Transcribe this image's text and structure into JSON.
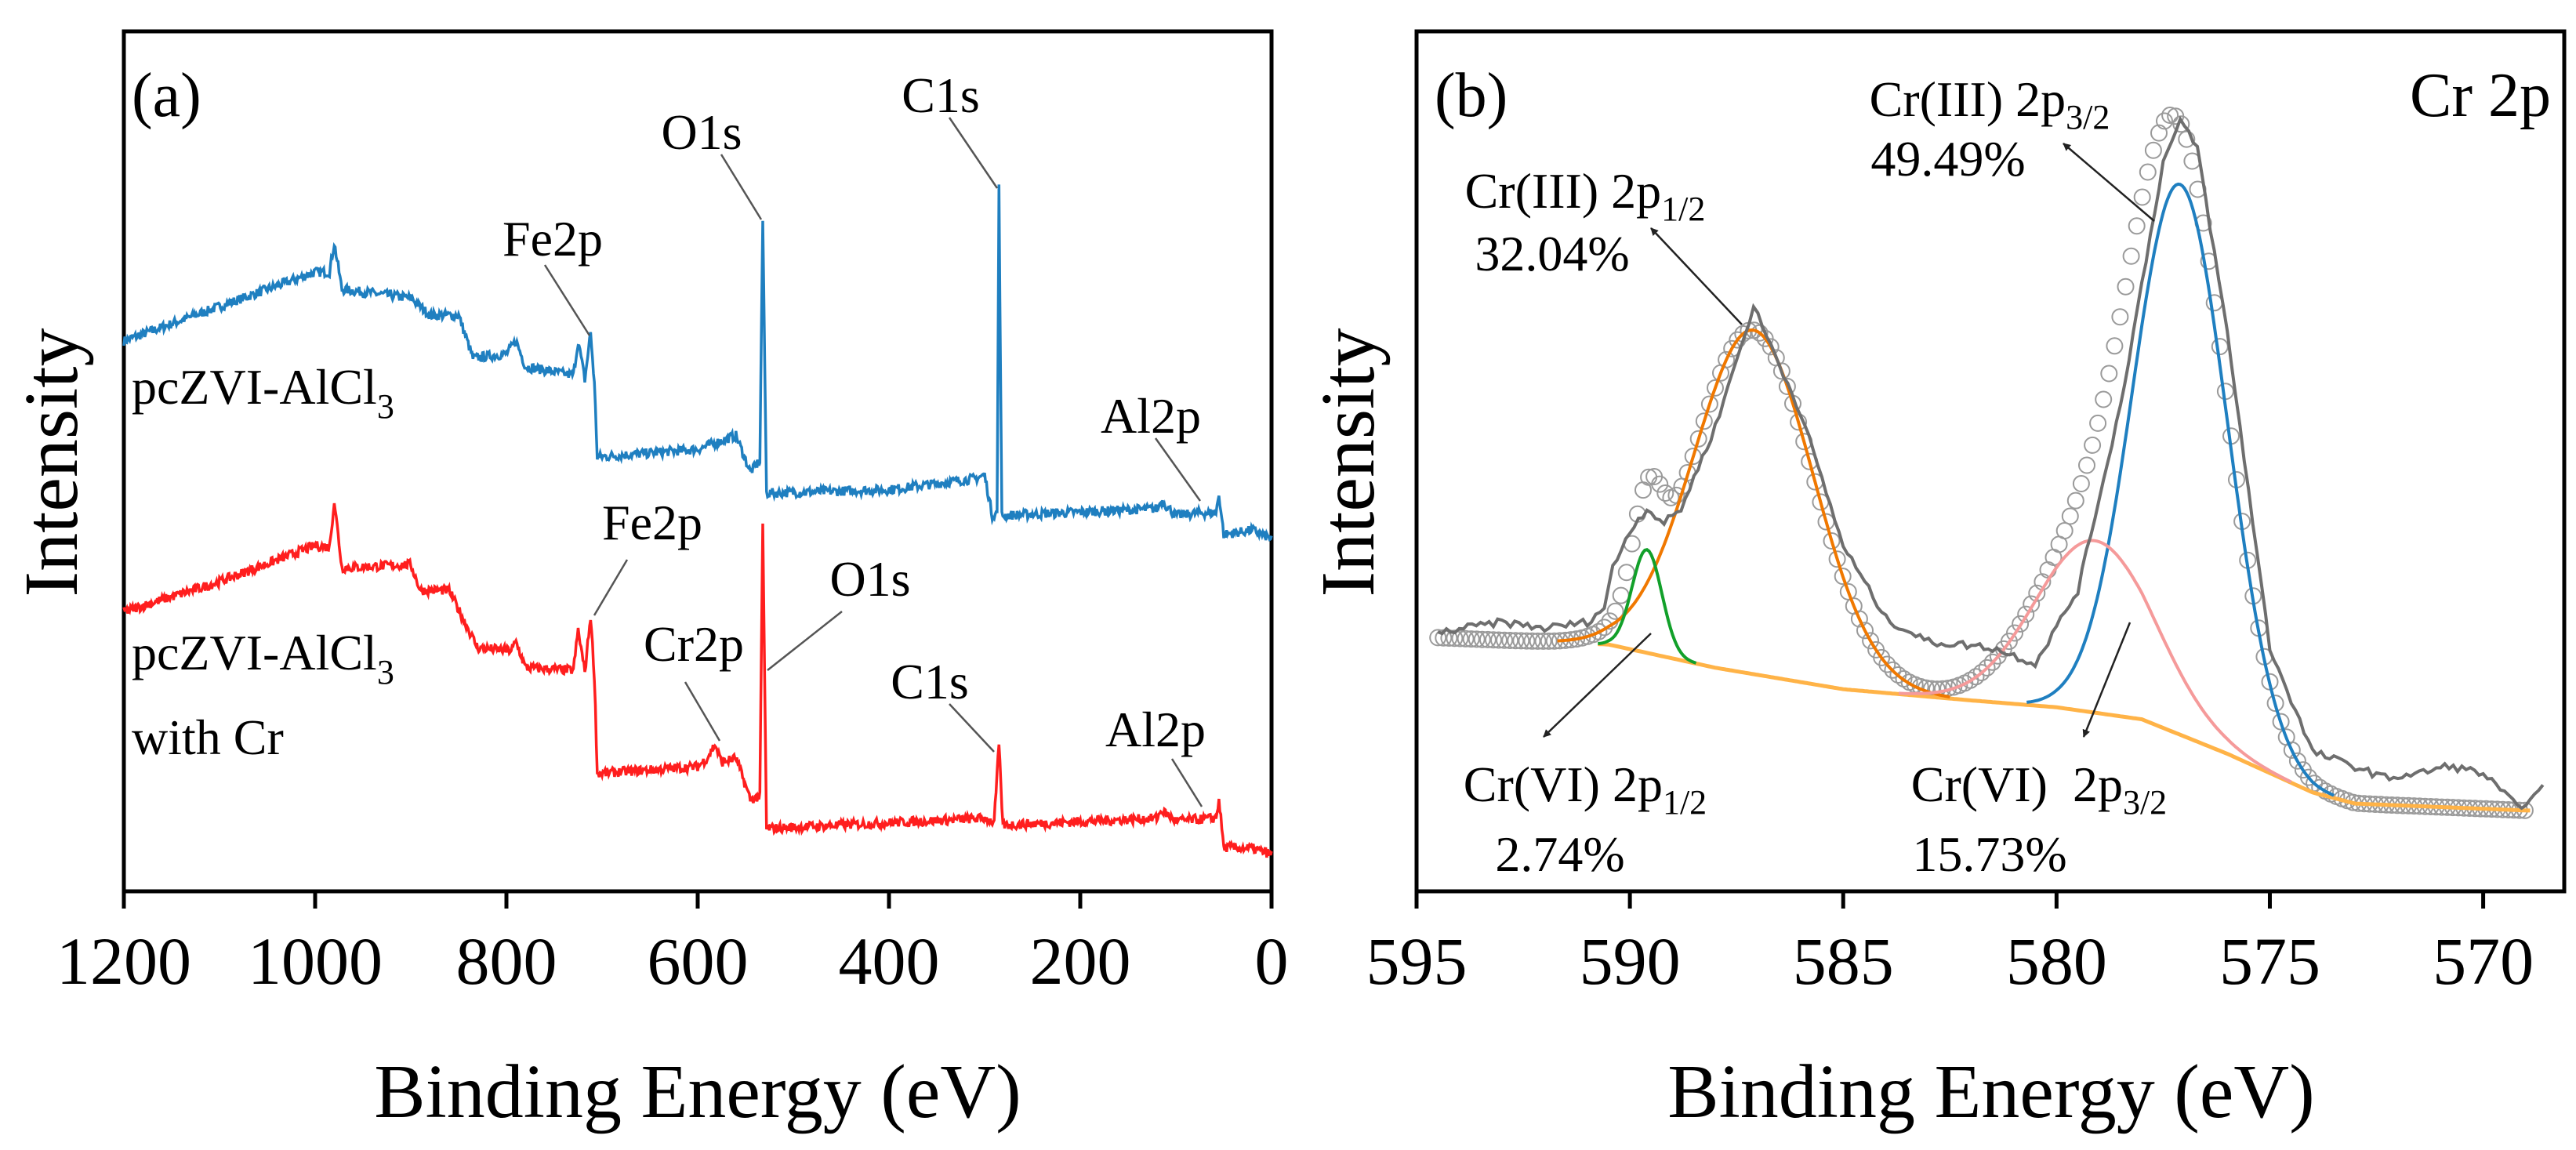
{
  "chart_data": [
    {
      "panel_label": "(a)",
      "type": "line",
      "title": "",
      "xlabel": "Binding Energy (eV)",
      "ylabel": "Intensity",
      "xlim": [
        1200,
        0
      ],
      "ylim": [
        0,
        100
      ],
      "x_reversed": true,
      "xticks": [
        "1200",
        "1000",
        "800",
        "600",
        "400",
        "200",
        "0"
      ],
      "xtick_values": [
        1200,
        1000,
        800,
        600,
        400,
        200,
        0
      ],
      "grid": false,
      "series": [
        {
          "name": "pcZVI-AlCl3",
          "color": "#1f7fc0",
          "label_main": "pcZVI-AlCl",
          "label_sub": "3",
          "points": [
            [
              1200,
              64
            ],
            [
              1100,
              68
            ],
            [
              1000,
              72
            ],
            [
              985,
              72
            ],
            [
              980,
              75.4
            ],
            [
              972,
              70
            ],
            [
              900,
              69
            ],
            [
              880,
              67
            ],
            [
              850,
              67
            ],
            [
              835,
              62
            ],
            [
              800,
              62.5
            ],
            [
              790,
              64
            ],
            [
              780,
              61
            ],
            [
              730,
              60
            ],
            [
              725,
              64
            ],
            [
              718,
              59.5
            ],
            [
              712,
              65
            ],
            [
              708,
              59
            ],
            [
              705,
              50.5
            ],
            [
              600,
              51.4
            ],
            [
              560,
              53
            ],
            [
              545,
              48.8
            ],
            [
              535,
              50
            ],
            [
              532,
              78
            ],
            [
              528,
              46.3
            ],
            [
              400,
              46.7
            ],
            [
              310,
              48
            ],
            [
              300,
              48.4
            ],
            [
              292,
              43.7
            ],
            [
              287,
              44
            ],
            [
              285,
              81.8
            ],
            [
              282,
              43.7
            ],
            [
              120,
              44.5
            ],
            [
              115,
              45.4
            ],
            [
              100,
              43.7
            ],
            [
              75,
              44
            ],
            [
              58,
              44
            ],
            [
              55,
              46.2
            ],
            [
              50,
              41.5
            ],
            [
              20,
              42
            ],
            [
              0,
              41
            ]
          ],
          "annotations": [
            {
              "text": "O1s",
              "x": 532
            },
            {
              "text": "C1s",
              "x": 285
            },
            {
              "text": "Fe2p",
              "x": 710
            },
            {
              "text": "Al2p",
              "x": 75
            }
          ]
        },
        {
          "name": "pcZVI-AlCl3 with Cr",
          "color": "#ff1e1e",
          "label_main": "pcZVI-AlCl",
          "label_sub": "3",
          "label_line2": "with Cr",
          "points": [
            [
              1200,
              32.5
            ],
            [
              1100,
              36
            ],
            [
              1000,
              40.2
            ],
            [
              985,
              40
            ],
            [
              980,
              45.4
            ],
            [
              972,
              37.6
            ],
            [
              900,
              38
            ],
            [
              890,
              35
            ],
            [
              860,
              35
            ],
            [
              830,
              28.3
            ],
            [
              795,
              28
            ],
            [
              790,
              29
            ],
            [
              780,
              26
            ],
            [
              730,
              25.7
            ],
            [
              725,
              30.4
            ],
            [
              718,
              25.5
            ],
            [
              712,
              32
            ],
            [
              708,
              25
            ],
            [
              705,
              13.7
            ],
            [
              600,
              14.5
            ],
            [
              590,
              15.5
            ],
            [
              582,
              17.1
            ],
            [
              575,
              15
            ],
            [
              560,
              15.5
            ],
            [
              545,
              10.7
            ],
            [
              535,
              11
            ],
            [
              532,
              42.4
            ],
            [
              528,
              7.3
            ],
            [
              300,
              8.5
            ],
            [
              290,
              8
            ],
            [
              285,
              17.1
            ],
            [
              281,
              7.7
            ],
            [
              120,
              8.5
            ],
            [
              115,
              9.4
            ],
            [
              100,
              8.2
            ],
            [
              58,
              8.5
            ],
            [
              55,
              10.7
            ],
            [
              50,
              5.1
            ],
            [
              20,
              5
            ],
            [
              0,
              4.3
            ]
          ],
          "annotations": [
            {
              "text": "Fe2p",
              "x": 710
            },
            {
              "text": "O1s",
              "x": 532
            },
            {
              "text": "Cr2p",
              "x": 580
            },
            {
              "text": "C1s",
              "x": 285
            },
            {
              "text": "Al2p",
              "x": 75
            }
          ]
        }
      ]
    },
    {
      "panel_label": "(b)",
      "type": "line",
      "title": "Cr 2p",
      "xlabel": "Binding Energy (eV)",
      "ylabel": "Intensity",
      "xlim": [
        595,
        568.1
      ],
      "ylim": [
        0,
        100
      ],
      "x_reversed": true,
      "xticks": [
        "595",
        "590",
        "585",
        "580",
        "575",
        "570"
      ],
      "xtick_values": [
        595,
        590,
        585,
        580,
        575,
        570
      ],
      "grid": false,
      "raw_data": {
        "name": "raw",
        "color": "#6e6e6e",
        "points": [
          [
            594.5,
            30
          ],
          [
            594,
            30.5
          ],
          [
            593,
            31.3
          ],
          [
            592,
            30.6
          ],
          [
            591,
            31.3
          ],
          [
            590.6,
            33
          ],
          [
            590.4,
            37.6
          ],
          [
            590,
            42
          ],
          [
            589.6,
            44.5
          ],
          [
            589.2,
            42.8
          ],
          [
            588.8,
            44.5
          ],
          [
            588,
            54
          ],
          [
            587.1,
            68
          ],
          [
            586,
            55.7
          ],
          [
            585,
            40.2
          ],
          [
            584,
            31.7
          ],
          [
            583,
            29
          ],
          [
            582,
            28.6
          ],
          [
            581.5,
            28.3
          ],
          [
            580.5,
            26.5
          ],
          [
            579.5,
            35
          ],
          [
            578.5,
            56.5
          ],
          [
            577.5,
            84.8
          ],
          [
            577.1,
            89.5
          ],
          [
            576.7,
            86.5
          ],
          [
            576,
            65
          ],
          [
            575,
            28.3
          ],
          [
            574,
            16.2
          ],
          [
            573,
            14.5
          ],
          [
            572.3,
            13.2
          ],
          [
            571.5,
            13.7
          ],
          [
            570.8,
            14.6
          ],
          [
            570,
            13.7
          ],
          [
            569.2,
            9.8
          ],
          [
            568.8,
            11
          ],
          [
            568.5,
            12.4
          ]
        ]
      },
      "background": {
        "name": "background",
        "color": "#ffb347",
        "points": [
          [
            594.5,
            29.5
          ],
          [
            590.5,
            28.7
          ],
          [
            588,
            26
          ],
          [
            585,
            23.5
          ],
          [
            582,
            22.2
          ],
          [
            580,
            21.4
          ],
          [
            578,
            20
          ],
          [
            576,
            16
          ],
          [
            574,
            11.5
          ],
          [
            573,
            10.2
          ],
          [
            569,
            9.4
          ]
        ]
      },
      "components": [
        {
          "name": "Cr(III) 2p1/2",
          "center": 587.1,
          "amplitude": 40,
          "sigma": 1.4,
          "color": "#f07800",
          "label_main": "Cr(III) 2p",
          "label_sub": "1/2",
          "percent": "32.04%"
        },
        {
          "name": "Cr(VI) 2p1/2",
          "center": 589.6,
          "amplitude": 12,
          "sigma": 0.35,
          "color": "#12a02a",
          "label_main": "Cr(VI) 2p",
          "label_sub": "1/2",
          "percent": "2.74%"
        },
        {
          "name": "Cr(III) 2p3/2",
          "center": 577.1,
          "amplitude": 64,
          "sigma": 1.1,
          "color": "#1f7fc0",
          "label_main": "Cr(III) 2p",
          "label_sub": "3/2",
          "percent": "49.49%"
        },
        {
          "name": "Cr(VI) 2p3/2",
          "center": 579.1,
          "amplitude": 20,
          "sigma": 1.4,
          "color": "#f59a9a",
          "label_main": "Cr(VI)  2p",
          "label_sub": "3/2",
          "percent": "15.73%"
        }
      ],
      "fit_envelope": {
        "name": "fit",
        "marker": "open-circle",
        "color": "#9a9a9a"
      }
    }
  ]
}
